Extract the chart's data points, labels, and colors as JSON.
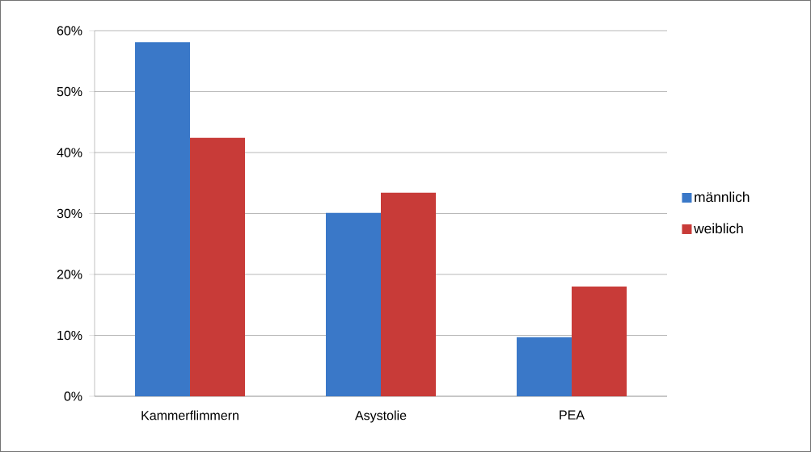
{
  "chart_data": {
    "type": "bar",
    "categories": [
      "Kammerflimmern",
      "Asystolie",
      "PEA"
    ],
    "series": [
      {
        "name": "männlich",
        "color": "#3a78c8",
        "values": [
          58.1,
          30.1,
          9.7
        ]
      },
      {
        "name": "weiblich",
        "color": "#c83b38",
        "values": [
          42.4,
          33.4,
          18.0
        ]
      }
    ],
    "ylim": [
      0,
      60
    ],
    "yticks": [
      {
        "value": 0,
        "label": "0%"
      },
      {
        "value": 10,
        "label": "10%"
      },
      {
        "value": 20,
        "label": "20%"
      },
      {
        "value": 30,
        "label": "30%"
      },
      {
        "value": 40,
        "label": "40%"
      },
      {
        "value": 50,
        "label": "50%"
      },
      {
        "value": 60,
        "label": "60%"
      }
    ],
    "grid": "y",
    "legend": "right"
  }
}
